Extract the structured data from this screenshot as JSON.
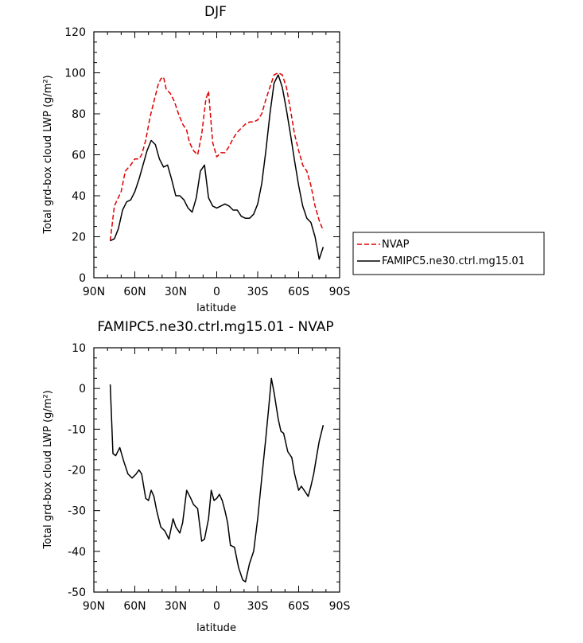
{
  "chart_data": [
    {
      "type": "line",
      "title": "DJF",
      "xlabel": "latitude",
      "ylabel": "Total grd-box cloud LWP (g/m²)",
      "ylim": [
        0,
        120
      ],
      "yticks": [
        "0",
        "20",
        "40",
        "60",
        "80",
        "100",
        "120"
      ],
      "xlim": [
        -90,
        90
      ],
      "xticks": [
        "90N",
        "60N",
        "30N",
        "0",
        "30S",
        "60S",
        "90S"
      ],
      "legend_position": "right",
      "series": [
        {
          "name": "NVAP",
          "color": "#e00000",
          "dash": true,
          "x": [
            -78,
            -75,
            -70,
            -67,
            -63,
            -60,
            -57,
            -55,
            -52,
            -49,
            -46,
            -43,
            -41,
            -39,
            -37,
            -34,
            -31,
            -28,
            -25,
            -22,
            -20,
            -17,
            -14,
            -11,
            -8,
            -6,
            -3,
            0,
            3,
            6,
            9,
            12,
            15,
            18,
            21,
            24,
            27,
            30,
            33,
            36,
            39,
            42,
            45,
            48,
            51,
            54,
            57,
            60,
            63,
            66,
            69,
            72,
            75,
            78
          ],
          "y": [
            18,
            35,
            42,
            52,
            55,
            58,
            58,
            60,
            67,
            78,
            86,
            94,
            97,
            98,
            92,
            90,
            86,
            80,
            75,
            72,
            66,
            62,
            60,
            70,
            87,
            91,
            66,
            59,
            61,
            61,
            64,
            68,
            71,
            73,
            75,
            76,
            76,
            77,
            80,
            87,
            93,
            99,
            100,
            99,
            93,
            82,
            70,
            62,
            55,
            52,
            45,
            35,
            28,
            23
          ]
        },
        {
          "name": "FAMIPC5.ne30.ctrl.mg15.01",
          "color": "#000000",
          "dash": false,
          "x": [
            -78,
            -75,
            -72,
            -69,
            -66,
            -63,
            -60,
            -57,
            -54,
            -51,
            -48,
            -45,
            -42,
            -39,
            -36,
            -33,
            -30,
            -27,
            -24,
            -21,
            -18,
            -15,
            -12,
            -9,
            -6,
            -3,
            0,
            3,
            6,
            9,
            12,
            15,
            18,
            21,
            24,
            27,
            30,
            33,
            36,
            39,
            42,
            45,
            48,
            51,
            54,
            57,
            60,
            63,
            66,
            69,
            72,
            75,
            78
          ],
          "y": [
            18,
            19,
            24,
            33,
            37,
            38,
            42,
            48,
            55,
            62,
            67,
            65,
            58,
            54,
            55,
            48,
            40,
            40,
            38,
            34,
            32,
            39,
            52,
            55,
            39,
            35,
            34,
            35,
            36,
            35,
            33,
            33,
            30,
            29,
            29,
            31,
            36,
            46,
            62,
            80,
            95,
            99,
            93,
            82,
            70,
            57,
            45,
            35,
            29,
            27,
            20,
            9,
            15
          ]
        }
      ]
    },
    {
      "type": "line",
      "title": "FAMIPC5.ne30.ctrl.mg15.01 - NVAP",
      "xlabel": "latitude",
      "ylabel": "Total grd-box cloud LWP (g/m²)",
      "ylim": [
        -50,
        10
      ],
      "yticks": [
        "-50",
        "-40",
        "-30",
        "-20",
        "-10",
        "0",
        "10"
      ],
      "xlim": [
        -90,
        90
      ],
      "xticks": [
        "90N",
        "60N",
        "30N",
        "0",
        "30S",
        "60S",
        "90S"
      ],
      "series": [
        {
          "color": "#000000",
          "x": [
            -78,
            -76,
            -74,
            -71,
            -68,
            -65,
            -62,
            -59,
            -57,
            -55,
            -52,
            -50,
            -48,
            -46,
            -44,
            -41,
            -38,
            -35,
            -32,
            -30,
            -27,
            -25,
            -22,
            -19,
            -17,
            -14,
            -11,
            -9,
            -6,
            -4,
            -2,
            0,
            2,
            4,
            6,
            8,
            10,
            13,
            16,
            19,
            21,
            24,
            27,
            30,
            33,
            36,
            38,
            40,
            42,
            45,
            47,
            49,
            52,
            55,
            57,
            60,
            62,
            65,
            67,
            69,
            71,
            73,
            75,
            78
          ],
          "y": [
            1,
            -16,
            -16.5,
            -14.5,
            -18,
            -21,
            -22,
            -21,
            -20,
            -21,
            -27,
            -27.5,
            -25,
            -26.5,
            -30,
            -34,
            -35,
            -37,
            -32,
            -34,
            -35.5,
            -33,
            -25,
            -27,
            -28.5,
            -29.5,
            -37.5,
            -37,
            -32,
            -25,
            -27.5,
            -27,
            -26,
            -27.5,
            -30,
            -33,
            -38.5,
            -39,
            -44,
            -47,
            -47.5,
            -43,
            -40,
            -32,
            -22,
            -12,
            -5,
            2.5,
            -1,
            -7.5,
            -10.5,
            -11,
            -15.5,
            -17,
            -21,
            -25,
            -24,
            -25.5,
            -26.5,
            -24,
            -21,
            -17,
            -13,
            -9
          ]
        }
      ]
    }
  ]
}
